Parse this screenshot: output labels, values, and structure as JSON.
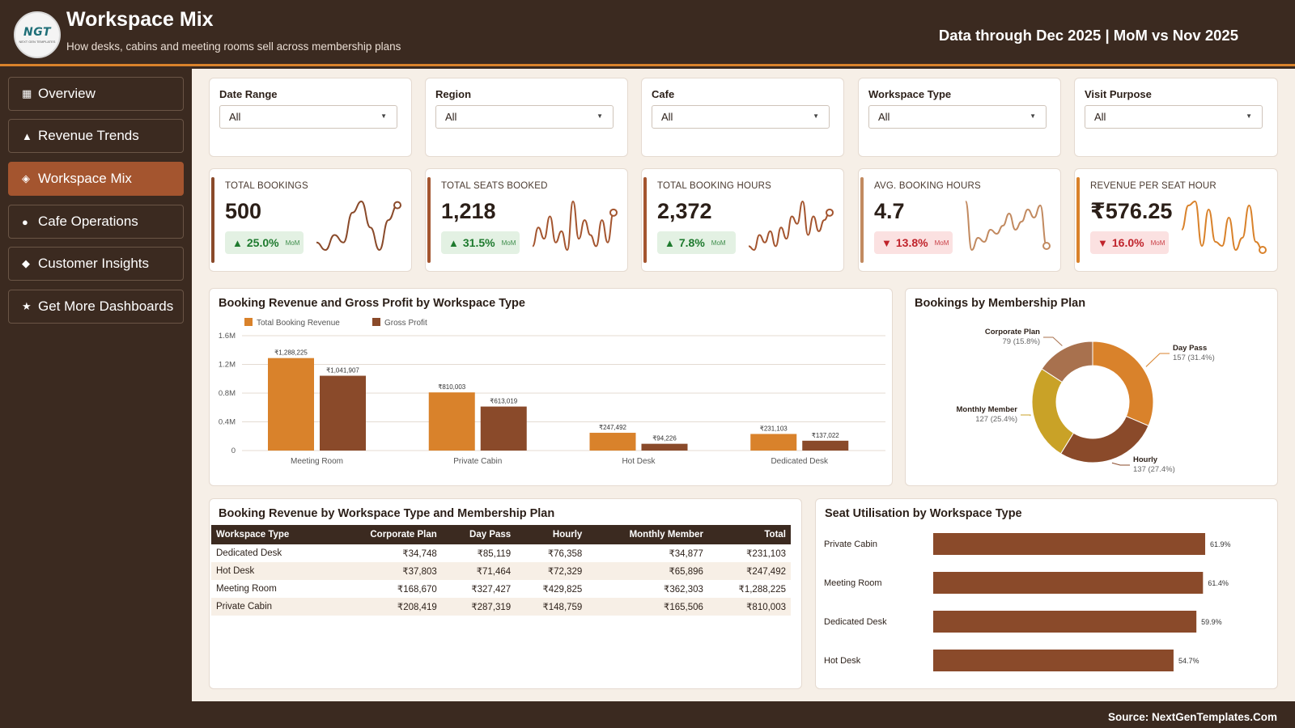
{
  "header": {
    "logo_text": "NGT",
    "logo_sub": "NEXT GEN TEMPLATES",
    "title": "Workspace Mix",
    "subtitle": "How desks, cabins and meeting rooms sell across membership plans",
    "data_through": "Data through Dec 2025 | MoM vs Nov 2025"
  },
  "sidebar": {
    "items": [
      {
        "icon": "▦",
        "label": "Overview",
        "icon_name": "grid-icon"
      },
      {
        "icon": "▲",
        "label": "Revenue Trends",
        "icon_name": "triangle-icon"
      },
      {
        "icon": "◈",
        "label": "Workspace Mix",
        "icon_name": "diamond-outline-icon"
      },
      {
        "icon": "●",
        "label": "Cafe Operations",
        "icon_name": "dot-icon"
      },
      {
        "icon": "◆",
        "label": "Customer Insights",
        "icon_name": "diamond-icon"
      },
      {
        "icon": "★",
        "label": "Get More Dashboards",
        "icon_name": "star-icon"
      }
    ],
    "active_index": 2
  },
  "filters": [
    {
      "label": "Date Range",
      "value": "All"
    },
    {
      "label": "Region",
      "value": "All"
    },
    {
      "label": "Cafe",
      "value": "All"
    },
    {
      "label": "Workspace Type",
      "value": "All"
    },
    {
      "label": "Visit Purpose",
      "value": "All"
    }
  ],
  "kpis": [
    {
      "label": "TOTAL BOOKINGS",
      "value": "500",
      "change": "25.0%",
      "direction": "up",
      "mom": "MoM",
      "color": "#8a4a2a",
      "spark": [
        3,
        1,
        5,
        3,
        11,
        14,
        7,
        1,
        9,
        13
      ]
    },
    {
      "label": "TOTAL SEATS BOOKED",
      "value": "1,218",
      "change": "31.5%",
      "direction": "up",
      "mom": "MoM",
      "color": "#a4552f",
      "spark": [
        2,
        7,
        4,
        10,
        3,
        6,
        1,
        14,
        4,
        9,
        5,
        2,
        9,
        3,
        11
      ]
    },
    {
      "label": "TOTAL BOOKING HOURS",
      "value": "2,372",
      "change": "7.8%",
      "direction": "up",
      "mom": "MoM",
      "color": "#a4552f",
      "spark": [
        2,
        1,
        5,
        3,
        6,
        2,
        7,
        4,
        10,
        8,
        14,
        5,
        10,
        6,
        9,
        11
      ]
    },
    {
      "label": "AVG. BOOKING HOURS",
      "value": "4.7",
      "change": "13.8%",
      "direction": "down",
      "mom": "MoM",
      "color": "#c28a60",
      "spark": [
        14,
        2,
        5,
        4,
        7,
        6,
        8,
        11,
        7,
        9,
        12,
        10,
        13,
        3
      ]
    },
    {
      "label": "REVENUE PER SEAT HOUR",
      "value": "₹576.25",
      "change": "16.0%",
      "direction": "down",
      "mom": "MoM",
      "color": "#d9822b",
      "spark": [
        6,
        12,
        13,
        2,
        11,
        3,
        2,
        9,
        1,
        4,
        12,
        3,
        1
      ]
    }
  ],
  "bar_chart_card": {
    "title": "Booking Revenue and Gross Profit by Workspace Type"
  },
  "donut_card": {
    "title": "Bookings by Membership Plan"
  },
  "table_card": {
    "title": "Booking Revenue by Workspace Type and Membership Plan"
  },
  "util_card": {
    "title": "Seat Utilisation by Workspace Type"
  },
  "chart_data": [
    {
      "type": "bar",
      "title": "Booking Revenue and Gross Profit by Workspace Type",
      "categories": [
        "Meeting Room",
        "Private Cabin",
        "Hot Desk",
        "Dedicated Desk"
      ],
      "series": [
        {
          "name": "Total Booking Revenue",
          "color": "#d9822b",
          "values": [
            1288225,
            810003,
            247492,
            231103
          ],
          "labels": [
            "₹1,288,225",
            "₹810,003",
            "₹247,492",
            "₹231,103"
          ]
        },
        {
          "name": "Gross Profit",
          "color": "#8a4a2a",
          "values": [
            1041907,
            613019,
            94226,
            137022
          ],
          "labels": [
            "₹1,041,907",
            "₹613,019",
            "₹94,226",
            "₹137,022"
          ]
        }
      ],
      "ylim": [
        0,
        1600000
      ],
      "yticks": [
        0,
        400000,
        800000,
        1200000,
        1600000
      ],
      "ytick_labels": [
        "0",
        "0.4M",
        "0.8M",
        "1.2M",
        "1.6M"
      ],
      "legend": "top-left",
      "grid": true
    },
    {
      "type": "pie",
      "title": "Bookings by Membership Plan",
      "donut": true,
      "slices": [
        {
          "name": "Day Pass",
          "value": 157,
          "label": "157 (31.4%)",
          "color": "#d9822b"
        },
        {
          "name": "Hourly",
          "value": 137,
          "label": "137 (27.4%)",
          "color": "#8a4a2a"
        },
        {
          "name": "Monthly Member",
          "value": 127,
          "label": "127 (25.4%)",
          "color": "#c9a227"
        },
        {
          "name": "Corporate Plan",
          "value": 79,
          "label": "79 (15.8%)",
          "color": "#a8714e"
        }
      ]
    },
    {
      "type": "table",
      "title": "Booking Revenue by Workspace Type and Membership Plan",
      "columns": [
        "Workspace Type",
        "Corporate Plan",
        "Day Pass",
        "Hourly",
        "Monthly Member",
        "Total"
      ],
      "rows": [
        [
          "Dedicated Desk",
          "₹34,748",
          "₹85,119",
          "₹76,358",
          "₹34,877",
          "₹231,103"
        ],
        [
          "Hot Desk",
          "₹37,803",
          "₹71,464",
          "₹72,329",
          "₹65,896",
          "₹247,492"
        ],
        [
          "Meeting Room",
          "₹168,670",
          "₹327,427",
          "₹429,825",
          "₹362,303",
          "₹1,288,225"
        ],
        [
          "Private Cabin",
          "₹208,419",
          "₹287,319",
          "₹148,759",
          "₹165,506",
          "₹810,003"
        ]
      ]
    },
    {
      "type": "bar",
      "orientation": "horizontal",
      "title": "Seat Utilisation by Workspace Type",
      "categories": [
        "Private Cabin",
        "Meeting Room",
        "Dedicated Desk",
        "Hot Desk"
      ],
      "values": [
        61.9,
        61.4,
        59.9,
        54.7
      ],
      "labels": [
        "61.9%",
        "61.4%",
        "59.9%",
        "54.7%"
      ],
      "xlim": [
        0,
        70
      ],
      "color": "#8a4a2a"
    }
  ],
  "footer": {
    "source": "Source: NextGenTemplates.Com"
  }
}
